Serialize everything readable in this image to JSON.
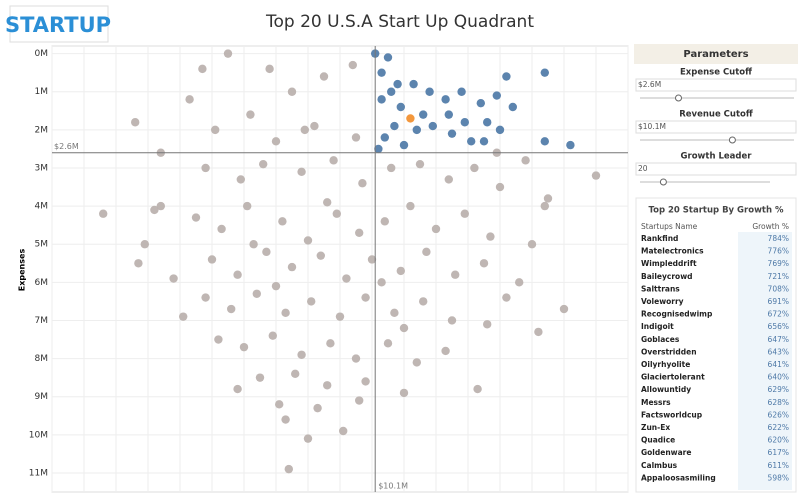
{
  "header": {
    "logo": "STARTUP",
    "title": "Top 20 U.S.A Start Up Quadrant"
  },
  "chart_data": {
    "type": "scatter",
    "ylabel": "Expenses",
    "xlim": [
      0,
      18
    ],
    "xticks": [
      0,
      1,
      2,
      3,
      4,
      5,
      6,
      7,
      8,
      9,
      10,
      11,
      12,
      13,
      14,
      15,
      16,
      17,
      18
    ],
    "ylim": [
      11.5,
      -0.2
    ],
    "yticks": [
      {
        "value": 0,
        "label": "0M"
      },
      {
        "value": 1,
        "label": "1M"
      },
      {
        "value": 2,
        "label": "2M"
      },
      {
        "value": 3,
        "label": "3M"
      },
      {
        "value": 4,
        "label": "4M"
      },
      {
        "value": 5,
        "label": "5M"
      },
      {
        "value": 6,
        "label": "6M"
      },
      {
        "value": 7,
        "label": "7M"
      },
      {
        "value": 8,
        "label": "8M"
      },
      {
        "value": 9,
        "label": "9M"
      },
      {
        "value": 10,
        "label": "10M"
      },
      {
        "value": 11,
        "label": "11M"
      }
    ],
    "reference_lines": {
      "expense": {
        "value": 2.6,
        "label": "$2.6M"
      },
      "revenue": {
        "value": 10.1,
        "label": "$10.1M"
      }
    },
    "series": [
      {
        "color": "#bab0ac",
        "x": [
          1.6,
          2.6,
          3.4,
          4.1,
          5.5,
          7.4,
          9.1,
          17,
          15.4,
          13.3,
          5.8,
          2.7,
          2.9,
          3.4,
          4.7,
          3.2,
          4.3,
          6.8,
          7.5,
          8.5,
          9.4,
          6.2,
          5.1,
          7.0,
          8.2,
          9.5,
          4.8,
          5.9,
          6.6,
          7.8,
          8.8,
          9.7,
          10.6,
          11.5,
          12.4,
          13.2,
          14.0,
          14.8,
          4.5,
          5.3,
          6.1,
          7.2,
          8.0,
          8.9,
          9.6,
          10.4,
          11.2,
          12.0,
          12.9,
          13.7,
          15.0,
          5.0,
          5.8,
          6.7,
          7.5,
          8.4,
          9.2,
          10.0,
          10.9,
          11.7,
          12.6,
          13.5,
          14.6,
          16.0,
          4.8,
          5.6,
          6.4,
          7.3,
          8.1,
          9.0,
          9.8,
          10.7,
          11.6,
          12.5,
          13.6,
          15.2,
          5.2,
          6.0,
          6.9,
          7.8,
          8.7,
          9.5,
          10.5,
          11.4,
          12.3,
          6.5,
          7.6,
          8.6,
          9.8,
          7.1,
          8.3,
          7.3,
          8.0,
          9.6,
          11.0,
          6.3,
          7.9,
          10.3,
          11.0,
          3.8,
          14.2,
          15.5,
          13.9,
          7.0,
          8.6
        ],
        "values": [
          4.2,
          1.8,
          2.6,
          6.9,
          0,
          10.9,
          9.9,
          3.2,
          4.0,
          8.8,
          8.8,
          5.5,
          5.0,
          4.0,
          0.4,
          4.1,
          1.2,
          0.4,
          1.0,
          0.6,
          0.3,
          1.6,
          2.0,
          2.3,
          1.9,
          2.2,
          3.0,
          3.3,
          2.9,
          3.1,
          2.8,
          3.4,
          3.0,
          2.9,
          3.3,
          3.0,
          3.5,
          2.8,
          4.3,
          4.6,
          4.0,
          4.4,
          4.9,
          4.2,
          4.7,
          4.4,
          4.0,
          4.6,
          4.2,
          4.8,
          5.0,
          5.4,
          5.8,
          5.2,
          5.6,
          5.3,
          5.9,
          5.4,
          5.7,
          5.2,
          5.8,
          5.5,
          6.0,
          6.7,
          6.4,
          6.7,
          6.3,
          6.8,
          6.5,
          6.9,
          6.4,
          6.8,
          6.5,
          7.0,
          7.1,
          7.3,
          7.5,
          7.7,
          7.4,
          7.9,
          7.6,
          8.0,
          7.6,
          8.1,
          7.8,
          8.5,
          8.4,
          8.7,
          8.6,
          9.2,
          9.3,
          9.6,
          10.1,
          9.1,
          8.9,
          5.0,
          2.0,
          6.0,
          7.2,
          5.9,
          6.4,
          3.8,
          2.6,
          6.1,
          3.9
        ]
      },
      {
        "color": "#4e79a7",
        "x": [
          10.1,
          10.5,
          10.3,
          10.8,
          11.3,
          11.8,
          12.3,
          12.8,
          13.4,
          13.9,
          14.2,
          14.4,
          15.4,
          13.6,
          12.9,
          12.5,
          11.9,
          11.4,
          10.7,
          10.4,
          10.2,
          10.9,
          11.6,
          12.4,
          13.1,
          14.0,
          15.4,
          16.2,
          10.3,
          11.0,
          10.6,
          13.5
        ],
        "values": [
          0.0,
          0.1,
          0.5,
          0.8,
          0.8,
          1.0,
          1.2,
          1.0,
          1.3,
          1.1,
          0.6,
          1.4,
          0.5,
          1.8,
          1.8,
          2.1,
          1.9,
          2.0,
          1.9,
          2.2,
          2.5,
          1.4,
          1.6,
          1.6,
          2.3,
          2.0,
          2.3,
          2.4,
          1.2,
          2.4,
          1.0,
          2.3
        ]
      },
      {
        "color": "#f28e2b",
        "x": [
          11.2
        ],
        "values": [
          1.7
        ]
      }
    ]
  },
  "parameters": {
    "title": "Parameters",
    "items": [
      {
        "name": "Expense Cutoff",
        "value": "$2.6M"
      },
      {
        "name": "Revenue Cutoff",
        "value": "$10.1M"
      },
      {
        "name": "Growth Leader",
        "value": "20"
      }
    ]
  },
  "table": {
    "title": "Top 20 Startup By Growth %",
    "columns": [
      "Startups Name",
      "Growth %"
    ],
    "rows": [
      [
        "Rankfind",
        "784%"
      ],
      [
        "Matelectronics",
        "776%"
      ],
      [
        "Wimpleddrift",
        "769%"
      ],
      [
        "Baileycrowd",
        "721%"
      ],
      [
        "Salttrans",
        "708%"
      ],
      [
        "Voleworry",
        "691%"
      ],
      [
        "Recognisedwimp",
        "672%"
      ],
      [
        "Indigoit",
        "656%"
      ],
      [
        "Goblaces",
        "647%"
      ],
      [
        "Overstridden",
        "643%"
      ],
      [
        "Oilyrhyolite",
        "641%"
      ],
      [
        "Glaciertolerant",
        "640%"
      ],
      [
        "Allowuntidy",
        "629%"
      ],
      [
        "Messrs",
        "628%"
      ],
      [
        "Factsworldcup",
        "626%"
      ],
      [
        "Zun-Ex",
        "622%"
      ],
      [
        "Quadice",
        "620%"
      ],
      [
        "Goldenware",
        "617%"
      ],
      [
        "Calmbus",
        "611%"
      ],
      [
        "Appaloosasmiling",
        "598%"
      ]
    ]
  }
}
